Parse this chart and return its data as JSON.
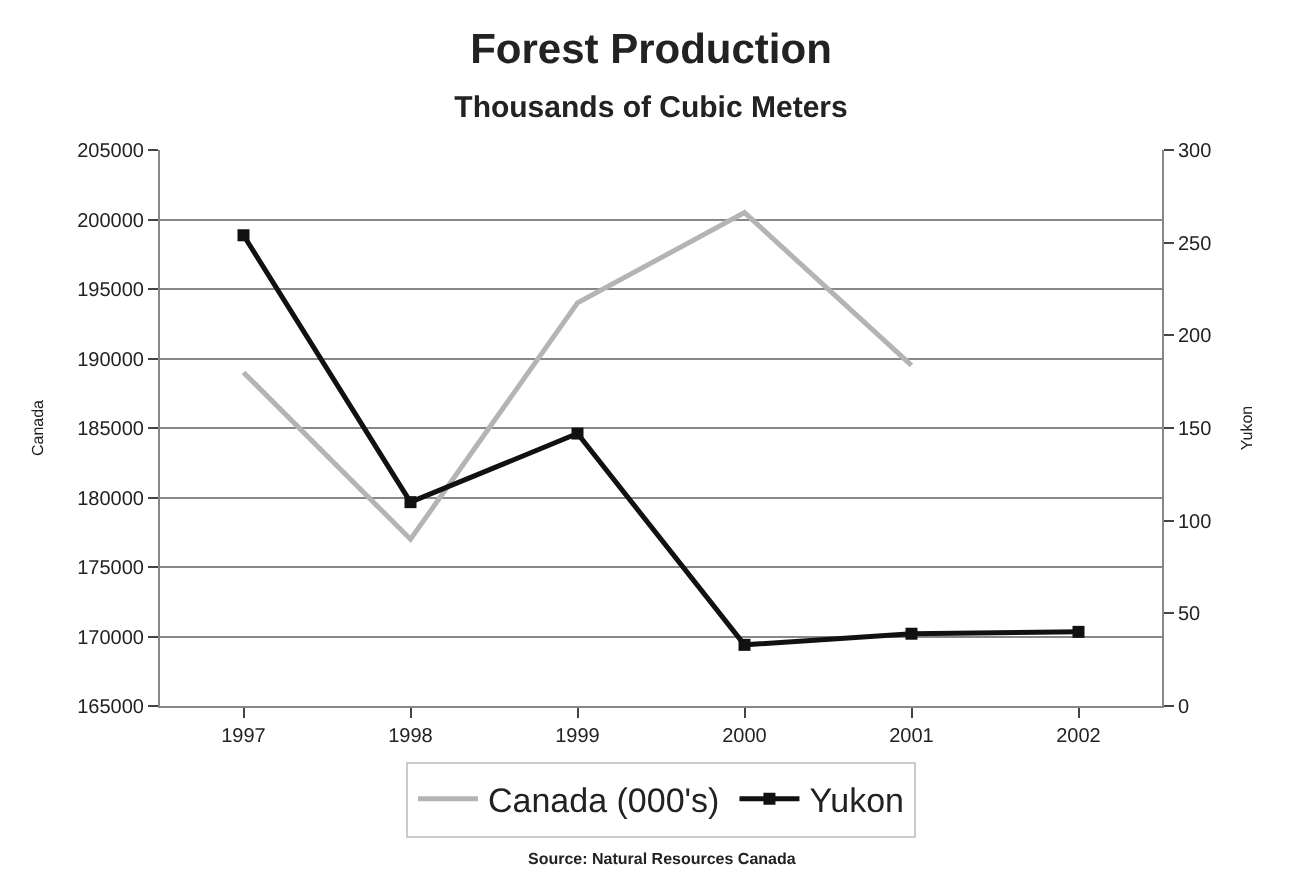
{
  "chart_data": {
    "type": "line",
    "title": "Forest Production",
    "subtitle": "Thousands of Cubic Meters",
    "ylabel": "Canada",
    "y2label": "Yukon",
    "categories": [
      "1997",
      "1998",
      "1999",
      "2000",
      "2001",
      "2002"
    ],
    "series": [
      {
        "name": "Canada (000's)",
        "color": "#b4b4b4",
        "marker": "none",
        "values": [
          189000,
          177000,
          194000,
          200500,
          189500,
          null
        ]
      },
      {
        "name": "Yukon",
        "color": "#111111",
        "marker": "square",
        "axis": "y2",
        "values": [
          254,
          110,
          147,
          33,
          39,
          40
        ]
      }
    ],
    "ylim": [
      165000,
      205000
    ],
    "yticks": [
      165000,
      170000,
      175000,
      180000,
      185000,
      190000,
      195000,
      200000,
      205000
    ],
    "y2lim": [
      0,
      300
    ],
    "y2ticks": [
      0,
      50,
      100,
      150,
      200,
      250,
      300
    ],
    "grid": "y",
    "legend": "bottom",
    "line_style": "solid",
    "annotations": [
      "Source: Natural Resources Canada"
    ]
  }
}
